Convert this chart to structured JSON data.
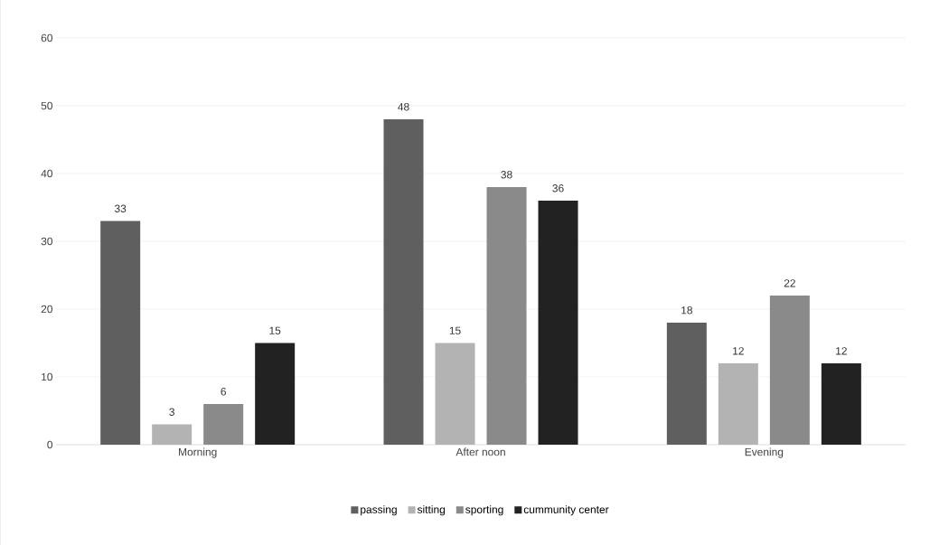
{
  "chart_data": {
    "type": "bar",
    "categories": [
      "Morning",
      "After noon",
      "Evening"
    ],
    "series": [
      {
        "name": "passing",
        "color": "#5f5f5f",
        "values": [
          33,
          48,
          18
        ]
      },
      {
        "name": "sitting",
        "color": "#b3b3b3",
        "values": [
          3,
          15,
          12
        ]
      },
      {
        "name": "sporting",
        "color": "#8a8a8a",
        "values": [
          6,
          38,
          22
        ]
      },
      {
        "name": "cummunity center",
        "color": "#222222",
        "values": [
          15,
          36,
          12
        ]
      }
    ],
    "ylim": [
      0,
      60
    ],
    "yticks": [
      0,
      10,
      20,
      30,
      40,
      50,
      60
    ],
    "grid": "y",
    "legend": "bottom",
    "data_labels": true
  }
}
